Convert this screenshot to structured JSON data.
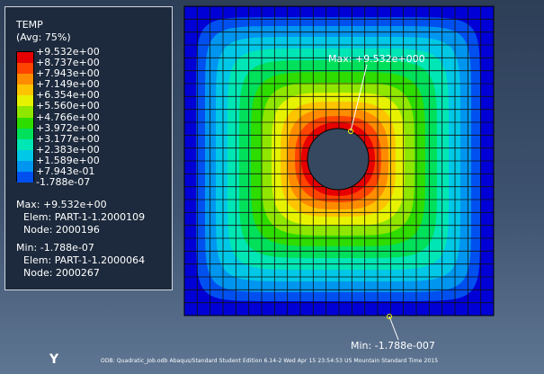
{
  "legend": {
    "title": "TEMP",
    "subtitle": "(Avg: 75%)",
    "levels": [
      {
        "label": "+9.532e+00",
        "color": "#e60000"
      },
      {
        "label": "+8.737e+00",
        "color": "#ff4400"
      },
      {
        "label": "+7.943e+00",
        "color": "#ff8c00"
      },
      {
        "label": "+7.149e+00",
        "color": "#ffc400"
      },
      {
        "label": "+6.354e+00",
        "color": "#e6f200"
      },
      {
        "label": "+5.560e+00",
        "color": "#8fe600"
      },
      {
        "label": "+4.766e+00",
        "color": "#2edc00"
      },
      {
        "label": "+3.972e+00",
        "color": "#00e05a"
      },
      {
        "label": "+3.177e+00",
        "color": "#00e6b4"
      },
      {
        "label": "+2.383e+00",
        "color": "#00c8e6"
      },
      {
        "label": "+1.589e+00",
        "color": "#0096f0"
      },
      {
        "label": "+7.943e-01",
        "color": "#0050f0"
      },
      {
        "label": "-1.788e-07",
        "color": "#0000d6"
      }
    ],
    "max": {
      "value": "Max: +9.532e+00",
      "elem": "Elem: PART-1-1.2000109",
      "node": "Node: 2000196"
    },
    "min": {
      "value": "Min: -1.788e-07",
      "elem": "Elem: PART-1-1.2000064",
      "node": "Node: 2000267"
    }
  },
  "annotations": {
    "max_label": "Max: +9.532e+000",
    "min_label": "Min: -1.788e-007"
  },
  "axis_label": "Y",
  "footer": "ODB: Quadratic_Job.odb    Abaqus/Standard Student Edition 6.14-2    Wed Apr 15 23:54:53 US Mountain Standard Time 2015"
}
